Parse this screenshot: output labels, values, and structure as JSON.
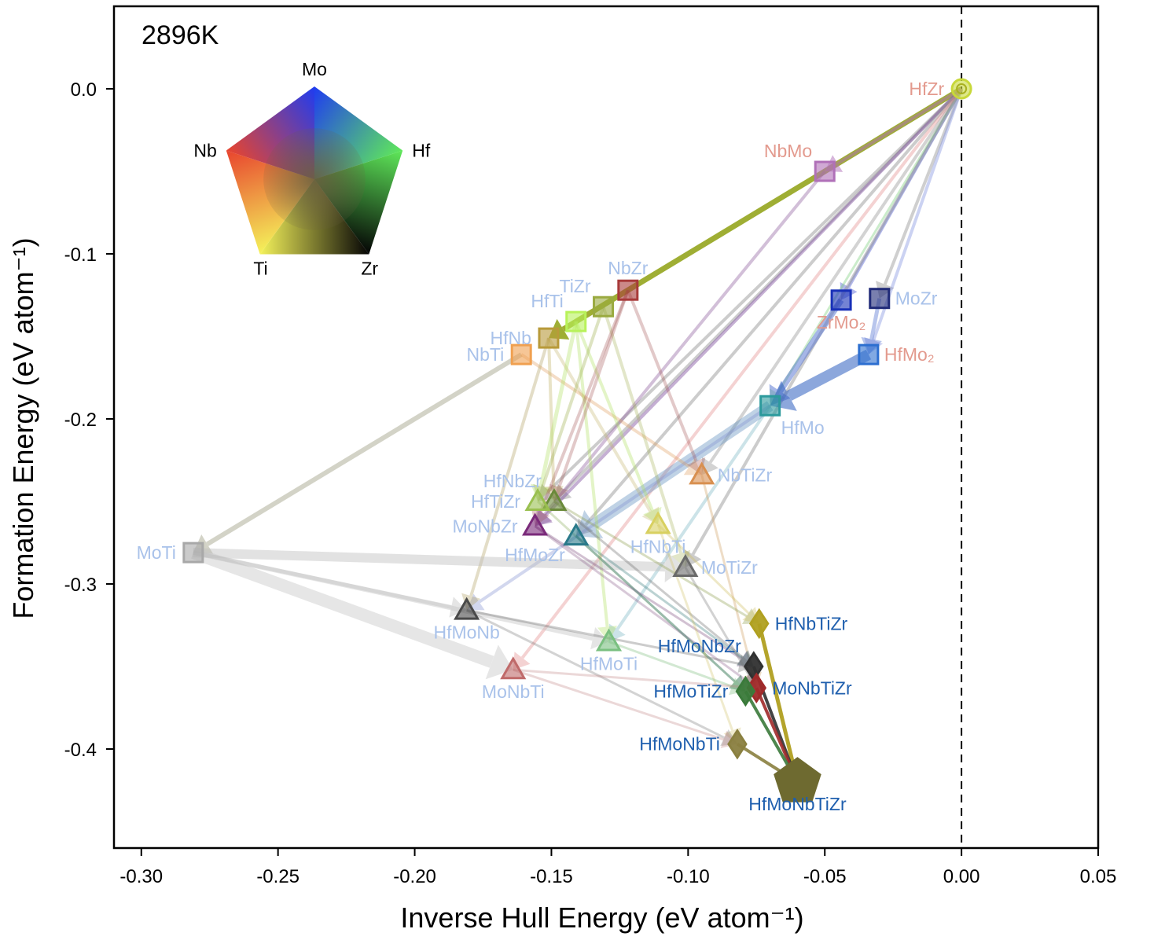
{
  "chart_data": {
    "type": "scatter",
    "title": "2896K",
    "xlabel": "Inverse Hull Energy (eV atom⁻¹)",
    "ylabel": "Formation Energy (eV atom⁻¹)",
    "xlim": [
      -0.31,
      0.05
    ],
    "ylim": [
      -0.46,
      0.05
    ],
    "xticks": [
      -0.3,
      -0.25,
      -0.2,
      -0.15,
      -0.1,
      -0.05,
      0.0,
      0.05
    ],
    "xtick_labels": [
      "-0.30",
      "-0.25",
      "-0.20",
      "-0.15",
      "-0.10",
      "-0.05",
      "0.00",
      "0.05"
    ],
    "yticks": [
      0.0,
      -0.1,
      -0.2,
      -0.3,
      -0.4
    ],
    "ytick_labels": [
      "0.0",
      "-0.1",
      "-0.2",
      "-0.3",
      "-0.4"
    ],
    "reference_line": {
      "x": 0.0,
      "style": "dashed"
    },
    "legend": {
      "type": "composition-pentagon",
      "placement": "top-left",
      "vertices": [
        {
          "label": "Mo",
          "color": "#1f3cf0"
        },
        {
          "label": "Hf",
          "color": "#5fe85a"
        },
        {
          "label": "Zr",
          "color": "#050505"
        },
        {
          "label": "Ti",
          "color": "#f4f25a"
        },
        {
          "label": "Nb",
          "color": "#e8442e"
        }
      ]
    },
    "points": [
      {
        "name": "HfZr",
        "x": 0.0,
        "y": 0.0,
        "marker": "circle",
        "color": "#c8d83a",
        "label_color": "#e39a8e",
        "label_pos": "left"
      },
      {
        "name": "NbMo",
        "x": -0.05,
        "y": -0.05,
        "marker": "square",
        "color": "#b070b8",
        "label_color": "#e39a8e",
        "label_pos": "above-left"
      },
      {
        "name": "ZrMo₂",
        "x": -0.044,
        "y": -0.128,
        "marker": "square",
        "color": "#1830b8",
        "label_color": "#e39a8e",
        "label_pos": "below"
      },
      {
        "name": "MoZr",
        "x": -0.03,
        "y": -0.127,
        "marker": "square",
        "color": "#202a78",
        "label_color": "#a9c2ea",
        "label_pos": "right"
      },
      {
        "name": "HfMo₂",
        "x": -0.034,
        "y": -0.161,
        "marker": "square",
        "color": "#2d6fd0",
        "label_color": "#e39a8e",
        "label_pos": "right"
      },
      {
        "name": "HfMo",
        "x": -0.07,
        "y": -0.192,
        "marker": "square",
        "color": "#2c9a9c",
        "label_color": "#a9c2ea",
        "label_pos": "below-right"
      },
      {
        "name": "NbZr",
        "x": -0.122,
        "y": -0.122,
        "marker": "square",
        "color": "#a83a3a",
        "label_color": "#a9c2ea",
        "label_pos": "above"
      },
      {
        "name": "TiZr",
        "x": -0.131,
        "y": -0.132,
        "marker": "square",
        "color": "#9aaa40",
        "label_color": "#a9c2ea",
        "label_pos": "above-left"
      },
      {
        "name": "HfTi",
        "x": -0.141,
        "y": -0.141,
        "marker": "square",
        "color": "#b8f25a",
        "label_color": "#a9c2ea",
        "label_pos": "above-left"
      },
      {
        "name": "HfNb",
        "x": -0.151,
        "y": -0.151,
        "marker": "square",
        "color": "#b89a3a",
        "label_color": "#a9c2ea",
        "label_pos": "left"
      },
      {
        "name": "NbTi",
        "x": -0.161,
        "y": -0.161,
        "marker": "square",
        "color": "#f0a050",
        "label_color": "#a9c2ea",
        "label_pos": "left"
      },
      {
        "name": "MoTi",
        "x": -0.281,
        "y": -0.281,
        "marker": "square",
        "color": "#a8a8a8",
        "label_color": "#a9c2ea",
        "label_pos": "left"
      },
      {
        "name": "NbTiZr",
        "x": -0.095,
        "y": -0.234,
        "marker": "triangle",
        "color": "#d89050",
        "label_color": "#a9c2ea",
        "label_pos": "right"
      },
      {
        "name": "HfNbZr",
        "x": -0.149,
        "y": -0.25,
        "marker": "triangle",
        "color": "#6a8a3a",
        "label_color": "#a9c2ea",
        "label_pos": "above-left"
      },
      {
        "name": "HfTiZr",
        "x": -0.155,
        "y": -0.25,
        "marker": "triangle",
        "color": "#9ac050",
        "label_color": "#a9c2ea",
        "label_pos": "left"
      },
      {
        "name": "MoNbZr",
        "x": -0.156,
        "y": -0.265,
        "marker": "triangle",
        "color": "#7a2a7a",
        "label_color": "#a9c2ea",
        "label_pos": "left"
      },
      {
        "name": "HfMoZr",
        "x": -0.141,
        "y": -0.271,
        "marker": "triangle",
        "color": "#2a7a8a",
        "label_color": "#a9c2ea",
        "label_pos": "below-left"
      },
      {
        "name": "HfNbTi",
        "x": -0.111,
        "y": -0.264,
        "marker": "triangle",
        "color": "#d8d060",
        "label_color": "#a9c2ea",
        "label_pos": "below"
      },
      {
        "name": "MoTiZr",
        "x": -0.101,
        "y": -0.29,
        "marker": "triangle",
        "color": "#6a6a6a",
        "label_color": "#a9c2ea",
        "label_pos": "right"
      },
      {
        "name": "HfMoNb",
        "x": -0.181,
        "y": -0.316,
        "marker": "triangle",
        "color": "#4a4a4a",
        "label_color": "#a9c2ea",
        "label_pos": "below"
      },
      {
        "name": "HfMoTi",
        "x": -0.129,
        "y": -0.335,
        "marker": "triangle",
        "color": "#7ac080",
        "label_color": "#a9c2ea",
        "label_pos": "below"
      },
      {
        "name": "MoNbTi",
        "x": -0.164,
        "y": -0.352,
        "marker": "triangle",
        "color": "#c06a6a",
        "label_color": "#a9c2ea",
        "label_pos": "below"
      },
      {
        "name": "HfNbTiZr",
        "x": -0.074,
        "y": -0.324,
        "marker": "diamond",
        "color": "#b0a020",
        "label_color": "#1f5fae",
        "label_pos": "right"
      },
      {
        "name": "HfMoNbZr",
        "x": -0.076,
        "y": -0.35,
        "marker": "diamond",
        "color": "#303030",
        "label_color": "#1f5fae",
        "label_pos": "above-left"
      },
      {
        "name": "MoNbTiZr",
        "x": -0.075,
        "y": -0.363,
        "marker": "diamond",
        "color": "#a02a2a",
        "label_color": "#1f5fae",
        "label_pos": "right"
      },
      {
        "name": "HfMoTiZr",
        "x": -0.079,
        "y": -0.365,
        "marker": "diamond",
        "color": "#3a7a3a",
        "label_color": "#1f5fae",
        "label_pos": "left"
      },
      {
        "name": "HfMoNbTi",
        "x": -0.082,
        "y": -0.397,
        "marker": "diamond",
        "color": "#8a8040",
        "label_color": "#1f5fae",
        "label_pos": "left"
      },
      {
        "name": "HfMoNbTiZr",
        "x": -0.06,
        "y": -0.42,
        "marker": "pentagon",
        "color": "#6e6a30",
        "label_color": "#1f5fae",
        "label_pos": "below"
      }
    ],
    "arrows": [
      {
        "from": "HfZr",
        "to": "HfNb",
        "color": "#9aaa2a",
        "opacity": 0.95,
        "width": 7
      },
      {
        "from": "HfZr",
        "to": "NbMo",
        "color": "#b070b8",
        "opacity": 0.5,
        "width": 4
      },
      {
        "from": "HfZr",
        "to": "ZrMo₂",
        "color": "#4050d0",
        "opacity": 0.4,
        "width": 4
      },
      {
        "from": "HfZr",
        "to": "MoZr",
        "color": "#a0a0a0",
        "opacity": 0.5,
        "width": 4
      },
      {
        "from": "HfZr",
        "to": "HfMo₂",
        "color": "#8090e0",
        "opacity": 0.4,
        "width": 4
      },
      {
        "from": "HfZr",
        "to": "HfMo",
        "color": "#80d080",
        "opacity": 0.4,
        "width": 3
      },
      {
        "from": "HfZr",
        "to": "NbTiZr",
        "color": "#a0a0a0",
        "opacity": 0.45,
        "width": 4
      },
      {
        "from": "HfZr",
        "to": "HfNbZr",
        "color": "#909090",
        "opacity": 0.45,
        "width": 4
      },
      {
        "from": "HfZr",
        "to": "HfTiZr",
        "color": "#909090",
        "opacity": 0.45,
        "width": 4
      },
      {
        "from": "HfZr",
        "to": "MoNbZr",
        "color": "#8050a0",
        "opacity": 0.45,
        "width": 4
      },
      {
        "from": "HfZr",
        "to": "HfMoZr",
        "color": "#909090",
        "opacity": 0.45,
        "width": 4
      },
      {
        "from": "HfZr",
        "to": "MoTiZr",
        "color": "#909090",
        "opacity": 0.45,
        "width": 4
      },
      {
        "from": "HfZr",
        "to": "MoNbTi",
        "color": "#e08080",
        "opacity": 0.35,
        "width": 4
      },
      {
        "from": "NbMo",
        "to": "MoNbZr",
        "color": "#9060a0",
        "opacity": 0.4,
        "width": 4
      },
      {
        "from": "ZrMo₂",
        "to": "HfMo",
        "color": "#5070d0",
        "opacity": 0.5,
        "width": 8
      },
      {
        "from": "MoZr",
        "to": "HfMo₂",
        "color": "#5070d0",
        "opacity": 0.4,
        "width": 5
      },
      {
        "from": "HfMo₂",
        "to": "HfMo",
        "color": "#3060c0",
        "opacity": 0.55,
        "width": 14
      },
      {
        "from": "HfMo",
        "to": "HfMoZr",
        "color": "#6090c0",
        "opacity": 0.4,
        "width": 14
      },
      {
        "from": "HfMo",
        "to": "HfMoNb",
        "color": "#8090d0",
        "opacity": 0.35,
        "width": 4
      },
      {
        "from": "HfMo",
        "to": "HfMoTi",
        "color": "#70b0c0",
        "opacity": 0.35,
        "width": 4
      },
      {
        "from": "NbTi",
        "to": "MoTi",
        "color": "#a8a890",
        "opacity": 0.5,
        "width": 6
      },
      {
        "from": "NbTi",
        "to": "NbTiZr",
        "color": "#e0a060",
        "opacity": 0.35,
        "width": 4
      },
      {
        "from": "HfNb",
        "to": "HfMoNb",
        "color": "#b0a060",
        "opacity": 0.35,
        "width": 4
      },
      {
        "from": "HfNb",
        "to": "HfNbZr",
        "color": "#c0b060",
        "opacity": 0.35,
        "width": 4
      },
      {
        "from": "HfNb",
        "to": "HfNbTi",
        "color": "#c0b060",
        "opacity": 0.3,
        "width": 4
      },
      {
        "from": "HfTi",
        "to": "HfTiZr",
        "color": "#b0e060",
        "opacity": 0.35,
        "width": 5
      },
      {
        "from": "HfTi",
        "to": "HfMoTi",
        "color": "#b0e060",
        "opacity": 0.35,
        "width": 4
      },
      {
        "from": "HfTi",
        "to": "HfNbTi",
        "color": "#b0e060",
        "opacity": 0.35,
        "width": 4
      },
      {
        "from": "TiZr",
        "to": "HfTiZr",
        "color": "#a0b050",
        "opacity": 0.35,
        "width": 4
      },
      {
        "from": "TiZr",
        "to": "MoTiZr",
        "color": "#a0b050",
        "opacity": 0.3,
        "width": 4
      },
      {
        "from": "NbZr",
        "to": "NbTiZr",
        "color": "#a05050",
        "opacity": 0.3,
        "width": 4
      },
      {
        "from": "NbZr",
        "to": "HfNbZr",
        "color": "#a05050",
        "opacity": 0.3,
        "width": 4
      },
      {
        "from": "NbZr",
        "to": "MoNbZr",
        "color": "#a05050",
        "opacity": 0.3,
        "width": 4
      },
      {
        "from": "MoTi",
        "to": "MoTiZr",
        "color": "#c0c0c0",
        "opacity": 0.45,
        "width": 12
      },
      {
        "from": "MoTi",
        "to": "MoNbTi",
        "color": "#c8c8c8",
        "opacity": 0.45,
        "width": 16
      },
      {
        "from": "MoTi",
        "to": "HfMoTi",
        "color": "#c0c0c0",
        "opacity": 0.4,
        "width": 6
      },
      {
        "from": "MoTi",
        "to": "HfMoNb",
        "color": "#c0c0c0",
        "opacity": 0.4,
        "width": 5
      },
      {
        "from": "NbTiZr",
        "to": "MoNbTiZr",
        "color": "#d0a060",
        "opacity": 0.35,
        "width": 3
      },
      {
        "from": "HfNbZr",
        "to": "HfMoNbZr",
        "color": "#707070",
        "opacity": 0.35,
        "width": 3
      },
      {
        "from": "HfNbZr",
        "to": "HfNbTiZr",
        "color": "#90a050",
        "opacity": 0.35,
        "width": 3
      },
      {
        "from": "HfTiZr",
        "to": "HfMoTiZr",
        "color": "#90b060",
        "opacity": 0.35,
        "width": 3
      },
      {
        "from": "MoNbZr",
        "to": "HfMoNbZr",
        "color": "#805080",
        "opacity": 0.35,
        "width": 3
      },
      {
        "from": "MoNbZr",
        "to": "MoNbTiZr",
        "color": "#805080",
        "opacity": 0.3,
        "width": 3
      },
      {
        "from": "HfMoZr",
        "to": "HfMoTiZr",
        "color": "#408080",
        "opacity": 0.4,
        "width": 3
      },
      {
        "from": "HfMoZr",
        "to": "HfMoNbZr",
        "color": "#408080",
        "opacity": 0.35,
        "width": 3
      },
      {
        "from": "HfNbTi",
        "to": "HfNbTiZr",
        "color": "#d0c060",
        "opacity": 0.35,
        "width": 3
      },
      {
        "from": "HfNbTi",
        "to": "HfMoNbTi",
        "color": "#d0c060",
        "opacity": 0.3,
        "width": 3
      },
      {
        "from": "MoTiZr",
        "to": "MoNbTiZr",
        "color": "#808080",
        "opacity": 0.35,
        "width": 3
      },
      {
        "from": "HfMoNb",
        "to": "HfMoNbZr",
        "color": "#707070",
        "opacity": 0.35,
        "width": 3
      },
      {
        "from": "HfMoNb",
        "to": "HfMoNbTi",
        "color": "#707070",
        "opacity": 0.3,
        "width": 3
      },
      {
        "from": "HfMoTi",
        "to": "HfMoTiZr",
        "color": "#80c080",
        "opacity": 0.35,
        "width": 3
      },
      {
        "from": "MoNbTi",
        "to": "MoNbTiZr",
        "color": "#c08080",
        "opacity": 0.3,
        "width": 3
      },
      {
        "from": "MoNbTi",
        "to": "HfMoNbTi",
        "color": "#c08080",
        "opacity": 0.3,
        "width": 3
      },
      {
        "from": "HfNbTiZr",
        "to": "HfMoNbTiZr",
        "color": "#b0a020",
        "opacity": 0.95,
        "width": 5
      },
      {
        "from": "HfMoNbZr",
        "to": "HfMoNbTiZr",
        "color": "#303030",
        "opacity": 0.9,
        "width": 4
      },
      {
        "from": "MoNbTiZr",
        "to": "HfMoNbTiZr",
        "color": "#a02a2a",
        "opacity": 0.9,
        "width": 4
      },
      {
        "from": "HfMoTiZr",
        "to": "HfMoNbTiZr",
        "color": "#3a7a3a",
        "opacity": 0.9,
        "width": 4
      },
      {
        "from": "HfMoNbTi",
        "to": "HfMoNbTiZr",
        "color": "#8a8040",
        "opacity": 0.9,
        "width": 4
      }
    ]
  }
}
